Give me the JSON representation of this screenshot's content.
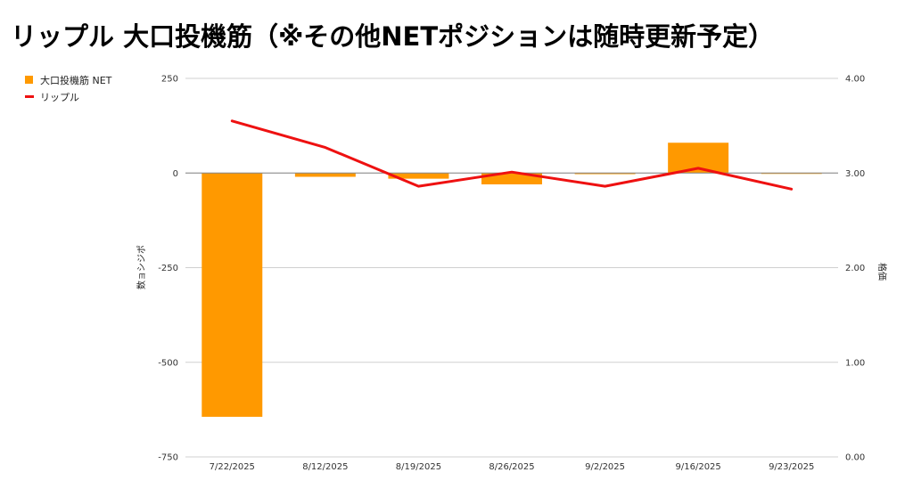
{
  "title": "リップル 大口投機筋（※その他NETポジションは随時更新予定）",
  "legend": [
    {
      "label": "大口投機筋 NET",
      "color": "#ff9900",
      "kind": "bar"
    },
    {
      "label": "リップル",
      "color": "#ee1111",
      "kind": "line"
    }
  ],
  "chart_data": {
    "type": "bar",
    "categories": [
      "7/22/2025",
      "8/12/2025",
      "8/19/2025",
      "8/26/2025",
      "9/2/2025",
      "9/16/2025",
      "9/23/2025"
    ],
    "series": [
      {
        "name": "大口投機筋 NET",
        "type": "bar",
        "axis": "left",
        "color": "#ff9900",
        "values": [
          -644,
          -10,
          -15,
          -30,
          -3,
          80,
          -1
        ]
      },
      {
        "name": "リップル",
        "type": "line",
        "axis": "right",
        "color": "#ee1111",
        "values": [
          3.55,
          3.27,
          2.86,
          3.01,
          2.86,
          3.05,
          2.83
        ]
      }
    ],
    "ylabel": "数ョシジポ",
    "y2label": "格価",
    "ylim": [
      -750,
      250
    ],
    "y2lim": [
      0,
      4
    ],
    "yticks": [
      "250",
      "0",
      "-250",
      "-500",
      "-750"
    ],
    "y2ticks": [
      "4.00",
      "3.00",
      "2.00",
      "1.00",
      "0.00"
    ],
    "grid": true,
    "legend_position": "top-left"
  }
}
